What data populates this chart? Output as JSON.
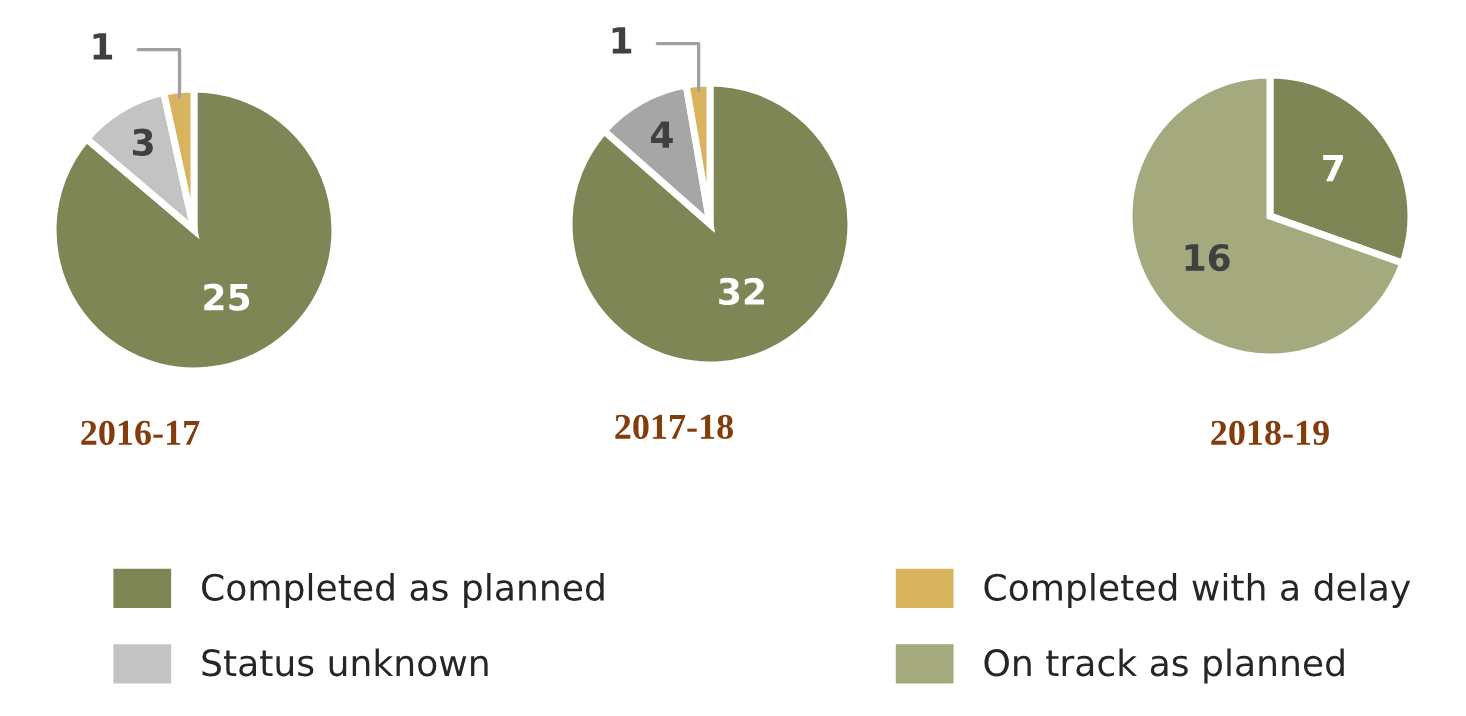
{
  "chart_data": [
    {
      "type": "pie",
      "title": "2016-17",
      "categories": [
        "Completed as planned",
        "Status unknown",
        "Completed with a delay"
      ],
      "values": [
        25,
        3,
        1
      ],
      "colors": [
        "#7f8656",
        "#c3c3c3",
        "#d9b45f"
      ],
      "data_labels": true,
      "legend": "bottom"
    },
    {
      "type": "pie",
      "title": "2017-18",
      "categories": [
        null,
        null,
        null
      ],
      "values": [
        32,
        4,
        1
      ],
      "colors": [
        "#7f8656",
        "#a6a6a6",
        "#d9b45f"
      ],
      "data_labels": true
    },
    {
      "type": "pie",
      "title": "2018-19",
      "categories": [
        null,
        "On track as planned"
      ],
      "values": [
        7,
        16
      ],
      "colors": [
        "#7f8656",
        "#a4aa7e"
      ],
      "data_labels": true
    }
  ]
}
